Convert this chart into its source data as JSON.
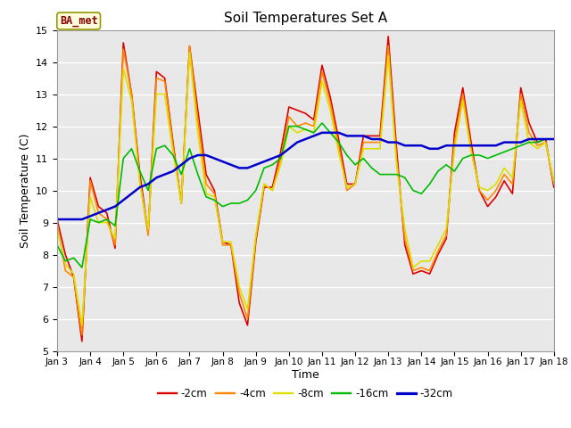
{
  "title": "Soil Temperatures Set A",
  "xlabel": "Time",
  "ylabel": "Soil Temperature (C)",
  "ylim": [
    5.0,
    15.0
  ],
  "yticks": [
    5.0,
    6.0,
    7.0,
    8.0,
    9.0,
    10.0,
    11.0,
    12.0,
    13.0,
    14.0,
    15.0
  ],
  "xtick_labels": [
    "Jan 3",
    "Jan 4",
    "Jan 5",
    "Jan 6",
    "Jan 7",
    "Jan 8",
    "Jan 9",
    "Jan 10",
    "Jan 11",
    "Jan 12",
    "Jan 13",
    "Jan 14",
    "Jan 15",
    "Jan 16",
    "Jan 17",
    "Jan 18"
  ],
  "figure_bg": "#ffffff",
  "plot_bg": "#e8e8e8",
  "grid_color": "#ffffff",
  "annotation_text": "BA_met",
  "annotation_bg": "#ffffe0",
  "annotation_border": "#999900",
  "series": {
    "-2cm": {
      "color": "#dd0000",
      "linewidth": 1.2,
      "x": [
        3,
        3.25,
        3.5,
        3.75,
        4,
        4.25,
        4.5,
        4.75,
        5,
        5.25,
        5.5,
        5.75,
        6,
        6.25,
        6.5,
        6.75,
        7,
        7.25,
        7.5,
        7.75,
        8,
        8.25,
        8.5,
        8.75,
        9,
        9.25,
        9.5,
        9.75,
        10,
        10.25,
        10.5,
        10.75,
        11,
        11.25,
        11.5,
        11.75,
        12,
        12.25,
        12.5,
        12.75,
        13,
        13.25,
        13.5,
        13.75,
        14,
        14.25,
        14.5,
        14.75,
        15,
        15.25,
        15.5,
        15.75,
        16,
        16.25,
        16.5,
        16.75,
        17,
        17.25,
        17.5,
        17.75,
        18
      ],
      "y": [
        9.1,
        8.0,
        7.3,
        5.3,
        10.4,
        9.5,
        9.3,
        8.2,
        14.6,
        13.0,
        10.5,
        8.7,
        13.7,
        13.5,
        11.5,
        9.6,
        14.5,
        12.5,
        10.5,
        10.0,
        8.4,
        8.3,
        6.5,
        5.8,
        8.4,
        10.1,
        10.1,
        11.2,
        12.6,
        12.5,
        12.4,
        12.2,
        13.9,
        12.9,
        11.6,
        10.2,
        10.2,
        11.7,
        11.7,
        11.7,
        14.8,
        11.3,
        8.3,
        7.4,
        7.5,
        7.4,
        8.0,
        8.5,
        11.8,
        13.2,
        11.5,
        10.0,
        9.5,
        9.8,
        10.3,
        9.9,
        13.2,
        12.1,
        11.5,
        11.6,
        10.1
      ]
    },
    "-4cm": {
      "color": "#ff8800",
      "linewidth": 1.2,
      "x": [
        3,
        3.25,
        3.5,
        3.75,
        4,
        4.25,
        4.5,
        4.75,
        5,
        5.25,
        5.5,
        5.75,
        6,
        6.25,
        6.5,
        6.75,
        7,
        7.25,
        7.5,
        7.75,
        8,
        8.25,
        8.5,
        8.75,
        9,
        9.25,
        9.5,
        9.75,
        10,
        10.25,
        10.5,
        10.75,
        11,
        11.25,
        11.5,
        11.75,
        12,
        12.25,
        12.5,
        12.75,
        13,
        13.25,
        13.5,
        13.75,
        14,
        14.25,
        14.5,
        14.75,
        15,
        15.25,
        15.5,
        15.75,
        16,
        16.25,
        16.5,
        16.75,
        17,
        17.25,
        17.5,
        17.75,
        18
      ],
      "y": [
        9.0,
        7.5,
        7.3,
        5.5,
        10.3,
        9.3,
        9.1,
        8.3,
        14.4,
        13.0,
        10.3,
        8.6,
        13.5,
        13.4,
        11.4,
        9.6,
        14.5,
        12.2,
        10.2,
        9.9,
        8.3,
        8.3,
        6.8,
        6.0,
        8.5,
        10.2,
        10.0,
        11.0,
        12.3,
        12.0,
        12.1,
        12.0,
        13.7,
        12.7,
        11.4,
        10.0,
        10.2,
        11.5,
        11.5,
        11.5,
        14.5,
        11.0,
        8.5,
        7.5,
        7.6,
        7.5,
        8.1,
        8.6,
        11.5,
        13.0,
        11.3,
        10.0,
        9.7,
        10.0,
        10.5,
        10.2,
        13.0,
        11.8,
        11.4,
        11.5,
        10.2
      ]
    },
    "-8cm": {
      "color": "#dddd00",
      "linewidth": 1.2,
      "x": [
        3,
        3.25,
        3.5,
        3.75,
        4,
        4.25,
        4.5,
        4.75,
        5,
        5.25,
        5.5,
        5.75,
        6,
        6.25,
        6.5,
        6.75,
        7,
        7.25,
        7.5,
        7.75,
        8,
        8.25,
        8.5,
        8.75,
        9,
        9.25,
        9.5,
        9.75,
        10,
        10.25,
        10.5,
        10.75,
        11,
        11.25,
        11.5,
        11.75,
        12,
        12.25,
        12.5,
        12.75,
        13,
        13.25,
        13.5,
        13.75,
        14,
        14.25,
        14.5,
        14.75,
        15,
        15.25,
        15.5,
        15.75,
        16,
        16.25,
        16.5,
        16.75,
        17,
        17.25,
        17.5,
        17.75,
        18
      ],
      "y": [
        8.8,
        7.7,
        7.4,
        5.8,
        9.8,
        9.0,
        9.0,
        8.5,
        13.8,
        12.8,
        10.2,
        8.8,
        13.0,
        13.0,
        11.2,
        9.6,
        14.3,
        11.8,
        9.9,
        9.8,
        8.4,
        8.4,
        7.0,
        6.3,
        8.6,
        10.2,
        10.0,
        10.8,
        12.0,
        11.8,
        11.9,
        11.8,
        13.4,
        12.5,
        11.2,
        10.1,
        10.2,
        11.3,
        11.3,
        11.3,
        14.2,
        10.8,
        8.8,
        7.6,
        7.8,
        7.8,
        8.3,
        8.8,
        11.3,
        12.8,
        11.2,
        10.1,
        10.0,
        10.2,
        10.7,
        10.4,
        12.8,
        11.5,
        11.3,
        11.5,
        10.3
      ]
    },
    "-16cm": {
      "color": "#00bb00",
      "linewidth": 1.2,
      "x": [
        3,
        3.25,
        3.5,
        3.75,
        4,
        4.25,
        4.5,
        4.75,
        5,
        5.25,
        5.5,
        5.75,
        6,
        6.25,
        6.5,
        6.75,
        7,
        7.25,
        7.5,
        7.75,
        8,
        8.25,
        8.5,
        8.75,
        9,
        9.25,
        9.5,
        9.75,
        10,
        10.25,
        10.5,
        10.75,
        11,
        11.25,
        11.5,
        11.75,
        12,
        12.25,
        12.5,
        12.75,
        13,
        13.25,
        13.5,
        13.75,
        14,
        14.25,
        14.5,
        14.75,
        15,
        15.25,
        15.5,
        15.75,
        16,
        16.25,
        16.5,
        16.75,
        17,
        17.25,
        17.5,
        17.75,
        18
      ],
      "y": [
        8.3,
        7.8,
        7.9,
        7.6,
        9.1,
        9.0,
        9.1,
        8.9,
        11.0,
        11.3,
        10.6,
        10.0,
        11.3,
        11.4,
        11.1,
        10.5,
        11.3,
        10.5,
        9.8,
        9.7,
        9.5,
        9.6,
        9.6,
        9.7,
        10.0,
        10.7,
        10.8,
        11.0,
        12.0,
        12.0,
        11.9,
        11.8,
        12.1,
        11.8,
        11.5,
        11.1,
        10.8,
        11.0,
        10.7,
        10.5,
        10.5,
        10.5,
        10.4,
        10.0,
        9.9,
        10.2,
        10.6,
        10.8,
        10.6,
        11.0,
        11.1,
        11.1,
        11.0,
        11.1,
        11.2,
        11.3,
        11.4,
        11.5,
        11.5,
        11.6,
        11.6
      ]
    },
    "-32cm": {
      "color": "#0000cc",
      "linewidth": 1.8,
      "x": [
        3,
        3.25,
        3.5,
        3.75,
        4,
        4.25,
        4.5,
        4.75,
        5,
        5.25,
        5.5,
        5.75,
        6,
        6.25,
        6.5,
        6.75,
        7,
        7.25,
        7.5,
        7.75,
        8,
        8.25,
        8.5,
        8.75,
        9,
        9.25,
        9.5,
        9.75,
        10,
        10.25,
        10.5,
        10.75,
        11,
        11.25,
        11.5,
        11.75,
        12,
        12.25,
        12.5,
        12.75,
        13,
        13.25,
        13.5,
        13.75,
        14,
        14.25,
        14.5,
        14.75,
        15,
        15.25,
        15.5,
        15.75,
        16,
        16.25,
        16.5,
        16.75,
        17,
        17.25,
        17.5,
        17.75,
        18
      ],
      "y": [
        9.1,
        9.1,
        9.1,
        9.1,
        9.2,
        9.3,
        9.4,
        9.5,
        9.7,
        9.9,
        10.1,
        10.2,
        10.4,
        10.5,
        10.6,
        10.8,
        11.0,
        11.1,
        11.1,
        11.0,
        10.9,
        10.8,
        10.7,
        10.7,
        10.8,
        10.9,
        11.0,
        11.1,
        11.3,
        11.5,
        11.6,
        11.7,
        11.8,
        11.8,
        11.8,
        11.7,
        11.7,
        11.7,
        11.6,
        11.6,
        11.5,
        11.5,
        11.4,
        11.4,
        11.4,
        11.3,
        11.3,
        11.4,
        11.4,
        11.4,
        11.4,
        11.4,
        11.4,
        11.4,
        11.5,
        11.5,
        11.5,
        11.6,
        11.6,
        11.6,
        11.6
      ]
    }
  },
  "legend_order": [
    "-2cm",
    "-4cm",
    "-8cm",
    "-16cm",
    "-32cm"
  ],
  "legend_colors": [
    "#dd0000",
    "#ff8800",
    "#dddd00",
    "#00bb00",
    "#0000cc"
  ]
}
